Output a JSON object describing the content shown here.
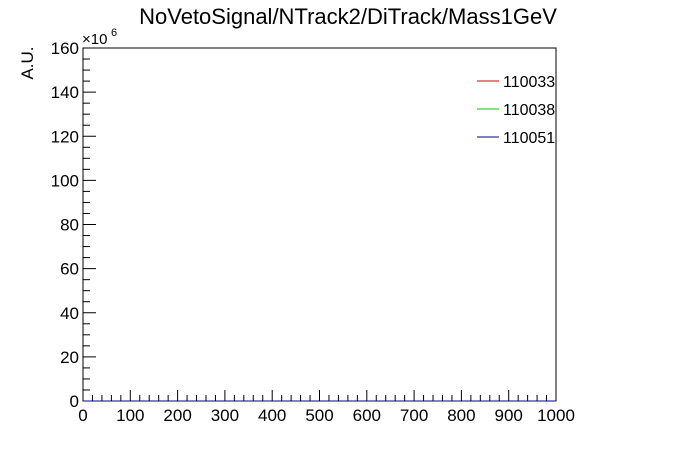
{
  "chart_data": {
    "type": "line",
    "title": "NoVetoSignal/NTrack2/DiTrack/Mass1GeV",
    "xlabel": "",
    "ylabel": "A.U.",
    "xlim": [
      0,
      1000
    ],
    "ylim": [
      0,
      160
    ],
    "y_multiplier": "×10",
    "y_multiplier_exp": "6",
    "x_ticks": [
      "0",
      "100",
      "200",
      "300",
      "400",
      "500",
      "600",
      "700",
      "800",
      "900",
      "1000"
    ],
    "y_ticks": [
      "0",
      "20",
      "40",
      "60",
      "80",
      "100",
      "120",
      "140",
      "160"
    ],
    "grid": false,
    "legend_position": "top-right",
    "series": [
      {
        "name": "110033",
        "color": "#cc0000",
        "x": [
          0,
          1000
        ],
        "y": [
          0,
          0
        ]
      },
      {
        "name": "110038",
        "color": "#00cc00",
        "x": [
          0,
          1000
        ],
        "y": [
          0,
          0
        ]
      },
      {
        "name": "110051",
        "color": "#000099",
        "x": [
          0,
          1000
        ],
        "y": [
          0,
          0
        ]
      }
    ]
  }
}
